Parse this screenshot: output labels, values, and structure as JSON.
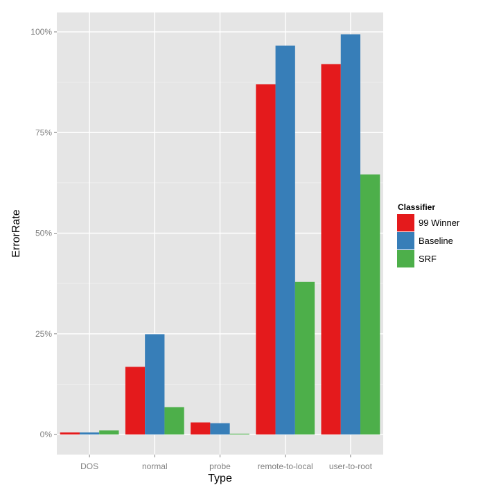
{
  "chart_data": {
    "type": "bar",
    "xlabel": "Type",
    "ylabel": "ErrorRate",
    "categories": [
      "DOS",
      "normal",
      "probe",
      "remote-to-local",
      "user-to-root"
    ],
    "series": [
      {
        "name": "99 Winner",
        "color": "#E41A1C",
        "values": [
          0.5,
          16.8,
          3.0,
          87.0,
          92.0
        ]
      },
      {
        "name": "Baseline",
        "color": "#377EB8",
        "values": [
          0.5,
          24.9,
          2.8,
          96.6,
          99.4
        ]
      },
      {
        "name": "SRF",
        "color": "#4DAF4A",
        "values": [
          1.0,
          6.8,
          0.2,
          37.9,
          64.6
        ]
      }
    ],
    "ylim": [
      0,
      100
    ],
    "y_ticks": [
      0,
      25,
      50,
      75,
      100
    ],
    "y_tick_labels": [
      "0%",
      "25%",
      "50%",
      "75%",
      "100%"
    ],
    "grid": true,
    "panel_background": "#E5E5E5",
    "legend": {
      "title": "Classifier",
      "position": "right"
    }
  }
}
